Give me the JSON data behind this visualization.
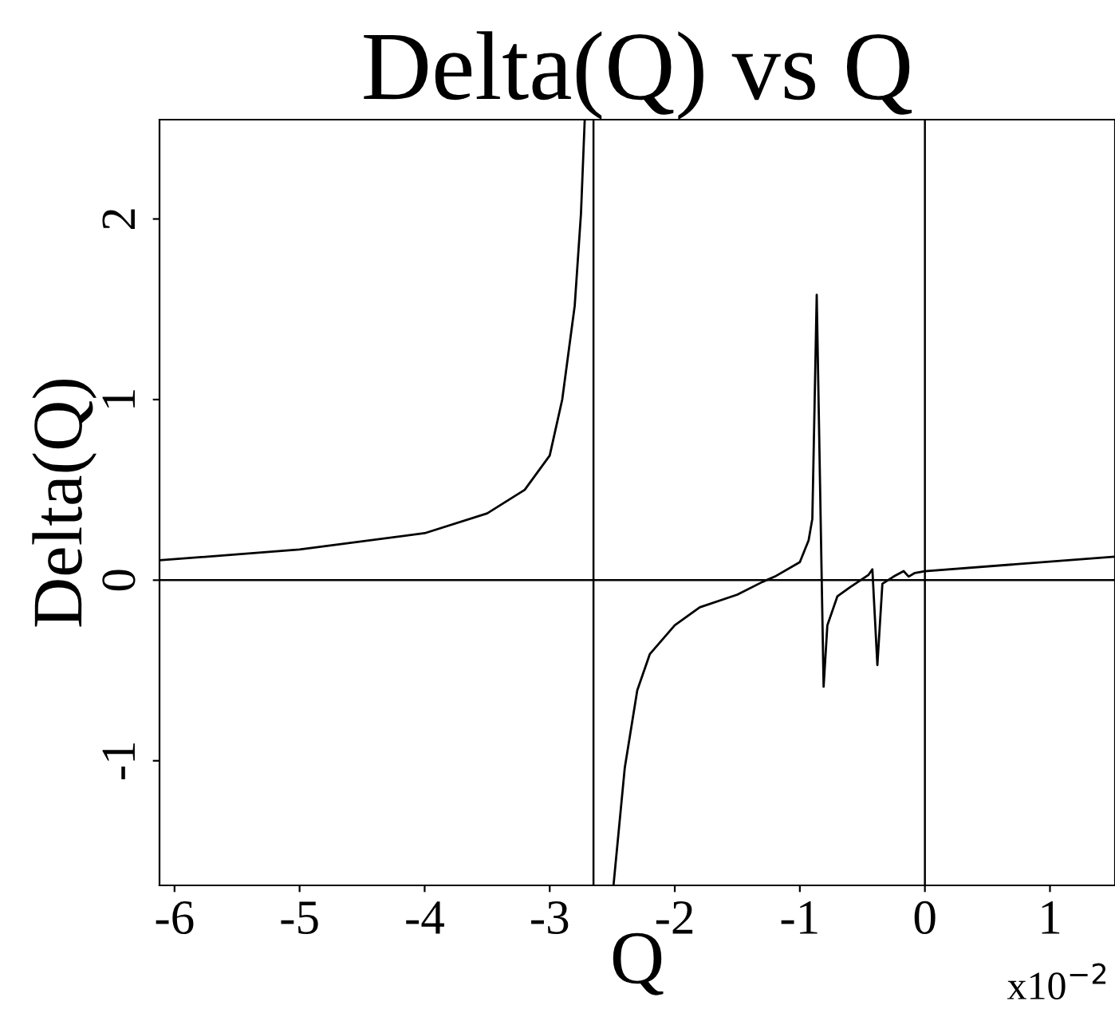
{
  "chart_data": {
    "type": "line",
    "title": "Delta(Q) vs Q",
    "xlabel": "Q",
    "ylabel": "Delta(Q)",
    "annotations": [
      "x10$^{−2}$"
    ],
    "series": [
      {
        "color": "#000000",
        "x": [
          -6.12,
          -5,
          -4,
          -3.5,
          -3.2,
          -3,
          -2.9,
          -2.8,
          -2.75,
          -2.72,
          -2.65,
          -2.49,
          -2.4,
          -2.3,
          -2.2,
          -2,
          -1.8,
          -1.5,
          -1.3,
          -1.2,
          -1,
          -0.93,
          -0.9,
          -0.865,
          -0.81,
          -0.78,
          -0.7,
          -0.6,
          -0.45,
          -0.42,
          -0.38,
          -0.34,
          -0.25,
          -0.17,
          -0.13,
          -0.08,
          0,
          1.52
        ],
        "values": [
          0.11,
          0.17,
          0.26,
          0.37,
          0.5,
          0.69,
          1.0,
          1.52,
          2.03,
          2.55,
          null,
          -1.69,
          -1.04,
          -0.61,
          -0.41,
          -0.25,
          -0.15,
          -0.08,
          -0.01,
          0.02,
          0.1,
          0.22,
          0.34,
          1.58,
          -0.59,
          -0.25,
          -0.09,
          -0.04,
          0.03,
          0.06,
          -0.47,
          -0.02,
          0.02,
          0.05,
          0.02,
          0.04,
          0.05,
          0.13
        ]
      }
    ],
    "xlim": [
      -6.12,
      1.52
    ],
    "ylim": [
      -1.69,
      2.55
    ],
    "xticks": [
      -6,
      -5,
      -4,
      -3,
      -2,
      -1,
      0,
      1
    ],
    "yticks": [
      -1,
      0,
      1,
      2
    ],
    "ref_lines": [
      {
        "axis": "x",
        "value": -2.65,
        "color": "#000000"
      },
      {
        "axis": "x",
        "value": 0,
        "color": "#000000"
      },
      {
        "axis": "y",
        "value": 0,
        "color": "#000000"
      }
    ],
    "grid": false,
    "legend": false,
    "marker": "none",
    "line_style": "solid"
  }
}
